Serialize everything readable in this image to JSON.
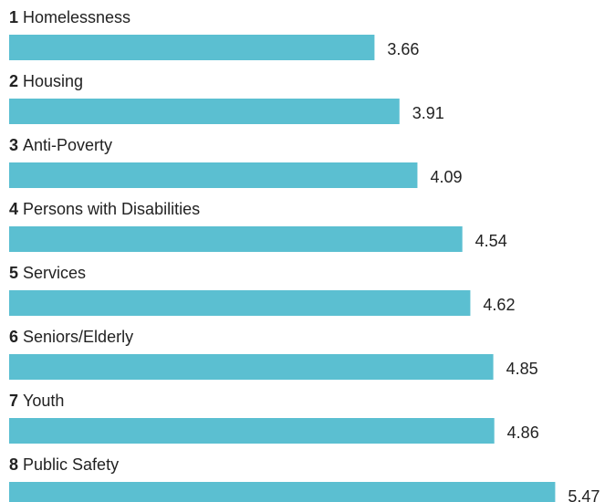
{
  "chart_data": {
    "type": "bar",
    "orientation": "horizontal",
    "ranks": [
      1,
      2,
      3,
      4,
      5,
      6,
      7,
      8
    ],
    "categories": [
      "Homelessness",
      "Housing",
      "Anti-Poverty",
      "Persons with Disabilities",
      "Services",
      "Seniors/Elderly",
      "Youth",
      "Public Safety"
    ],
    "values": [
      3.66,
      3.91,
      4.09,
      4.54,
      4.62,
      4.85,
      4.86,
      5.47
    ],
    "color": "#5bbfd1",
    "xlim": [
      0,
      6
    ]
  }
}
